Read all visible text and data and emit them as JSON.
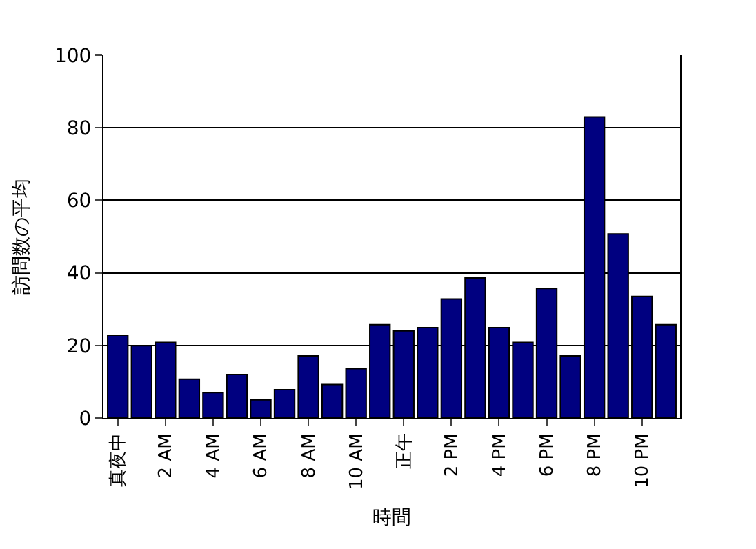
{
  "chart_data": {
    "type": "bar",
    "xlabel": "時間",
    "ylabel": "訪問数の平均",
    "categories": [
      "真夜中",
      null,
      "2 AM",
      null,
      "4 AM",
      null,
      "6 AM",
      null,
      "8 AM",
      null,
      "10 AM",
      null,
      "正午",
      null,
      "2 PM",
      null,
      "4 PM",
      null,
      "6 PM",
      null,
      "8 PM",
      null,
      "10 PM",
      null
    ],
    "values": [
      22.8,
      19.9,
      20.8,
      10.7,
      7,
      12,
      5,
      7.8,
      17.1,
      9.2,
      13.6,
      25.7,
      24,
      24.9,
      32.8,
      38.6,
      24.9,
      20.8,
      35.7,
      17.1,
      83,
      50.7,
      33.5,
      25.7
    ],
    "color": "#000080",
    "ylim": [
      0,
      100
    ],
    "yticks": [
      0,
      20,
      40,
      60,
      80,
      100
    ],
    "grid": "y"
  }
}
